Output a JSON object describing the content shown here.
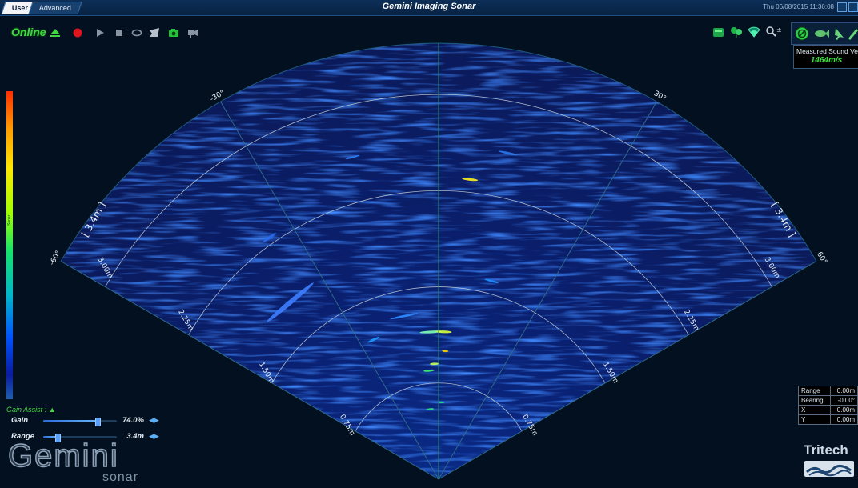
{
  "window": {
    "title": "Gemini Imaging Sonar",
    "tabs": [
      {
        "label": "User",
        "active": true
      },
      {
        "label": "Advanced",
        "active": false
      }
    ],
    "datetime": "Thu 06/08/2015 11:36:08"
  },
  "toolbar": {
    "status_label": "Online",
    "icons": [
      "eject-icon",
      "record-icon",
      "play-icon",
      "stop-icon",
      "loop-icon",
      "bookmark-icon",
      "camera-icon",
      "video-camera-icon"
    ],
    "right_icons": [
      "palette-icon",
      "tree-icon",
      "sonar-mode-icon",
      "zoom-icon"
    ],
    "panel_icons": [
      "target-icon",
      "fish-icon",
      "pointer-icon",
      "wand-icon"
    ]
  },
  "velocity": {
    "label": "Measured Sound Velocity",
    "value": "1464m/s"
  },
  "colorbar": {
    "label": "Sonar"
  },
  "sonar": {
    "angle_labels": [
      {
        "deg": -30,
        "text": "-30°"
      },
      {
        "deg": 30,
        "text": "30°"
      },
      {
        "deg": -60,
        "text": "-60°"
      },
      {
        "deg": 60,
        "text": "60°"
      }
    ],
    "range_label_left": "[ 3.4m ]",
    "range_label_right": "[ 3.4m ]",
    "rings": [
      {
        "range_m": 0.75,
        "label": "0.75m"
      },
      {
        "range_m": 1.5,
        "label": "1.50m"
      },
      {
        "range_m": 2.25,
        "label": "2.25m"
      },
      {
        "range_m": 3.0,
        "label": "3.00m"
      }
    ],
    "max_range_m": 3.4,
    "fov_deg": 120,
    "ring_color": "#c8d4de",
    "radial_color": "#2e6a8a",
    "center_line_color": "#2c8a6e"
  },
  "controls": {
    "gain_assist_label": "Gain Assist :",
    "gain": {
      "label": "Gain",
      "value": "74.0%",
      "fraction": 0.74
    },
    "range": {
      "label": "Range",
      "value": "3.4m",
      "fraction": 0.2
    }
  },
  "readout": [
    {
      "label": "Range",
      "value": "0.00m"
    },
    {
      "label": "Bearing",
      "value": "-0.00°"
    },
    {
      "label": "X",
      "value": "0.00m"
    },
    {
      "label": "Y",
      "value": "0.00m"
    }
  ],
  "branding": {
    "gemini": "Gemini",
    "gemini_sub": "sonar",
    "tritech": "Tritech"
  }
}
